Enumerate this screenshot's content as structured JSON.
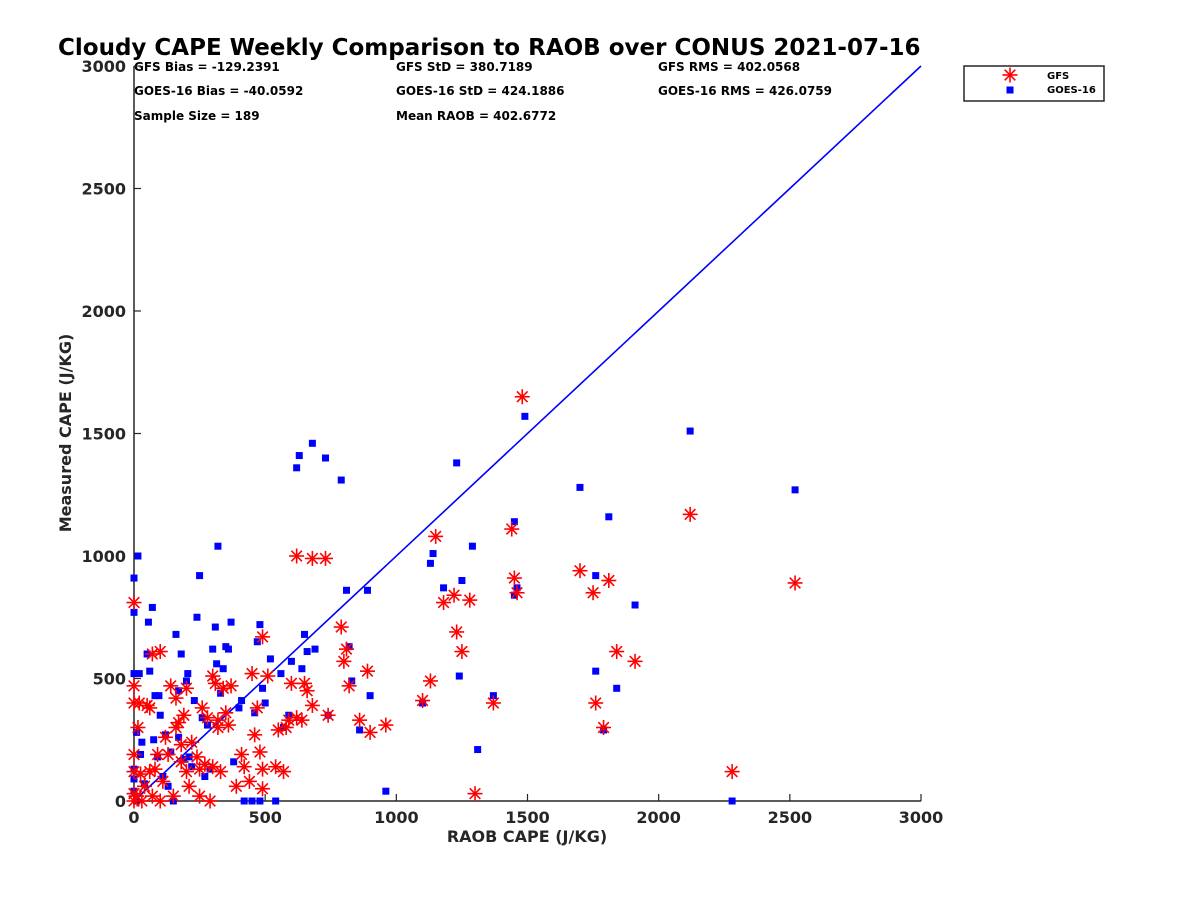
{
  "chart_data": {
    "type": "scatter",
    "title": "Cloudy CAPE Weekly Comparison to RAOB over CONUS 2021-07-16",
    "xlabel": "RAOB CAPE (J/KG)",
    "ylabel": "Measured CAPE (J/KG)",
    "xlim": [
      0,
      3000
    ],
    "ylim": [
      0,
      3000
    ],
    "xticks": [
      "0",
      "500",
      "1000",
      "1500",
      "2000",
      "2500",
      "3000"
    ],
    "yticks": [
      "0",
      "500",
      "1000",
      "1500",
      "2000",
      "2500",
      "3000"
    ],
    "grid": false,
    "legend_position": "top-right, outside plot",
    "stats": [
      "GFS Bias = -129.2391",
      "GFS StD = 380.7189",
      "GFS RMS = 402.0568",
      "GOES-16 Bias = -40.0592",
      "GOES-16 StD = 424.1886",
      "GOES-16 RMS = 426.0759",
      "Sample Size = 189",
      "Mean RAOB = 402.6772"
    ],
    "reference_line": {
      "x": [
        0,
        3000
      ],
      "y": [
        0,
        3000
      ],
      "color": "#0000ff"
    },
    "series": [
      {
        "name": "GFS",
        "marker": "asterisk",
        "color": "#ff0000",
        "points": [
          [
            0,
            810
          ],
          [
            0,
            470
          ],
          [
            0,
            400
          ],
          [
            0,
            190
          ],
          [
            0,
            120
          ],
          [
            0,
            30
          ],
          [
            0,
            0
          ],
          [
            10,
            20
          ],
          [
            15,
            300
          ],
          [
            20,
            400
          ],
          [
            25,
            110
          ],
          [
            30,
            0
          ],
          [
            40,
            60
          ],
          [
            50,
            390
          ],
          [
            60,
            380
          ],
          [
            60,
            120
          ],
          [
            70,
            20
          ],
          [
            70,
            600
          ],
          [
            80,
            130
          ],
          [
            90,
            190
          ],
          [
            100,
            610
          ],
          [
            100,
            0
          ],
          [
            110,
            80
          ],
          [
            120,
            260
          ],
          [
            130,
            190
          ],
          [
            140,
            470
          ],
          [
            150,
            20
          ],
          [
            160,
            300
          ],
          [
            160,
            420
          ],
          [
            170,
            320
          ],
          [
            180,
            160
          ],
          [
            180,
            230
          ],
          [
            190,
            350
          ],
          [
            200,
            120
          ],
          [
            200,
            460
          ],
          [
            210,
            60
          ],
          [
            220,
            240
          ],
          [
            240,
            180
          ],
          [
            250,
            20
          ],
          [
            250,
            130
          ],
          [
            260,
            380
          ],
          [
            270,
            150
          ],
          [
            280,
            340
          ],
          [
            290,
            0
          ],
          [
            300,
            140
          ],
          [
            300,
            510
          ],
          [
            310,
            480
          ],
          [
            320,
            300
          ],
          [
            320,
            330
          ],
          [
            330,
            120
          ],
          [
            340,
            460
          ],
          [
            350,
            360
          ],
          [
            360,
            310
          ],
          [
            370,
            470
          ],
          [
            390,
            60
          ],
          [
            410,
            190
          ],
          [
            420,
            140
          ],
          [
            440,
            80
          ],
          [
            450,
            520
          ],
          [
            460,
            270
          ],
          [
            470,
            380
          ],
          [
            480,
            200
          ],
          [
            490,
            50
          ],
          [
            490,
            670
          ],
          [
            490,
            130
          ],
          [
            510,
            510
          ],
          [
            540,
            140
          ],
          [
            550,
            290
          ],
          [
            570,
            120
          ],
          [
            580,
            300
          ],
          [
            590,
            330
          ],
          [
            600,
            480
          ],
          [
            620,
            340
          ],
          [
            620,
            1000
          ],
          [
            640,
            330
          ],
          [
            650,
            480
          ],
          [
            660,
            450
          ],
          [
            680,
            990
          ],
          [
            680,
            390
          ],
          [
            730,
            990
          ],
          [
            740,
            350
          ],
          [
            790,
            710
          ],
          [
            800,
            570
          ],
          [
            810,
            620
          ],
          [
            820,
            470
          ],
          [
            860,
            330
          ],
          [
            890,
            530
          ],
          [
            900,
            280
          ],
          [
            960,
            310
          ],
          [
            1100,
            410
          ],
          [
            1130,
            490
          ],
          [
            1150,
            1080
          ],
          [
            1180,
            810
          ],
          [
            1220,
            840
          ],
          [
            1230,
            690
          ],
          [
            1250,
            610
          ],
          [
            1280,
            820
          ],
          [
            1300,
            30
          ],
          [
            1370,
            400
          ],
          [
            1440,
            1110
          ],
          [
            1450,
            910
          ],
          [
            1460,
            850
          ],
          [
            1480,
            1650
          ],
          [
            1700,
            940
          ],
          [
            1750,
            850
          ],
          [
            1760,
            400
          ],
          [
            1790,
            300
          ],
          [
            1810,
            900
          ],
          [
            1840,
            610
          ],
          [
            1910,
            570
          ],
          [
            2120,
            1170
          ],
          [
            2280,
            120
          ],
          [
            2520,
            890
          ]
        ]
      },
      {
        "name": "GOES-16",
        "marker": "square",
        "color": "#0000ff",
        "points": [
          [
            0,
            910
          ],
          [
            0,
            770
          ],
          [
            0,
            520
          ],
          [
            0,
            130
          ],
          [
            0,
            90
          ],
          [
            0,
            40
          ],
          [
            10,
            0
          ],
          [
            10,
            280
          ],
          [
            15,
            1000
          ],
          [
            20,
            520
          ],
          [
            25,
            190
          ],
          [
            30,
            240
          ],
          [
            40,
            70
          ],
          [
            50,
            600
          ],
          [
            55,
            730
          ],
          [
            60,
            530
          ],
          [
            70,
            790
          ],
          [
            75,
            250
          ],
          [
            80,
            430
          ],
          [
            90,
            180
          ],
          [
            95,
            430
          ],
          [
            100,
            350
          ],
          [
            110,
            100
          ],
          [
            120,
            270
          ],
          [
            130,
            60
          ],
          [
            140,
            200
          ],
          [
            150,
            0
          ],
          [
            160,
            680
          ],
          [
            170,
            450
          ],
          [
            170,
            260
          ],
          [
            180,
            600
          ],
          [
            190,
            170
          ],
          [
            200,
            490
          ],
          [
            205,
            520
          ],
          [
            210,
            180
          ],
          [
            220,
            140
          ],
          [
            230,
            410
          ],
          [
            240,
            750
          ],
          [
            250,
            920
          ],
          [
            260,
            340
          ],
          [
            270,
            100
          ],
          [
            280,
            310
          ],
          [
            290,
            130
          ],
          [
            300,
            620
          ],
          [
            310,
            710
          ],
          [
            315,
            560
          ],
          [
            320,
            1040
          ],
          [
            330,
            440
          ],
          [
            340,
            540
          ],
          [
            350,
            630
          ],
          [
            360,
            620
          ],
          [
            370,
            730
          ],
          [
            380,
            160
          ],
          [
            400,
            380
          ],
          [
            410,
            410
          ],
          [
            420,
            0
          ],
          [
            450,
            0
          ],
          [
            460,
            360
          ],
          [
            470,
            650
          ],
          [
            480,
            720
          ],
          [
            480,
            0
          ],
          [
            490,
            460
          ],
          [
            500,
            400
          ],
          [
            520,
            580
          ],
          [
            540,
            0
          ],
          [
            560,
            520
          ],
          [
            570,
            300
          ],
          [
            590,
            350
          ],
          [
            600,
            570
          ],
          [
            620,
            1360
          ],
          [
            630,
            1410
          ],
          [
            640,
            540
          ],
          [
            650,
            680
          ],
          [
            660,
            610
          ],
          [
            680,
            1460
          ],
          [
            690,
            620
          ],
          [
            730,
            1400
          ],
          [
            740,
            350
          ],
          [
            790,
            1310
          ],
          [
            810,
            860
          ],
          [
            820,
            630
          ],
          [
            830,
            490
          ],
          [
            860,
            290
          ],
          [
            890,
            860
          ],
          [
            900,
            430
          ],
          [
            960,
            40
          ],
          [
            1100,
            400
          ],
          [
            1130,
            970
          ],
          [
            1140,
            1010
          ],
          [
            1180,
            870
          ],
          [
            1230,
            1380
          ],
          [
            1240,
            510
          ],
          [
            1250,
            900
          ],
          [
            1290,
            1040
          ],
          [
            1310,
            210
          ],
          [
            1370,
            430
          ],
          [
            1450,
            1140
          ],
          [
            1450,
            840
          ],
          [
            1460,
            870
          ],
          [
            1490,
            1570
          ],
          [
            1700,
            1280
          ],
          [
            1760,
            920
          ],
          [
            1760,
            530
          ],
          [
            1790,
            290
          ],
          [
            1810,
            1160
          ],
          [
            1840,
            460
          ],
          [
            1910,
            800
          ],
          [
            2120,
            1510
          ],
          [
            2280,
            0
          ],
          [
            2520,
            1270
          ]
        ]
      }
    ]
  }
}
